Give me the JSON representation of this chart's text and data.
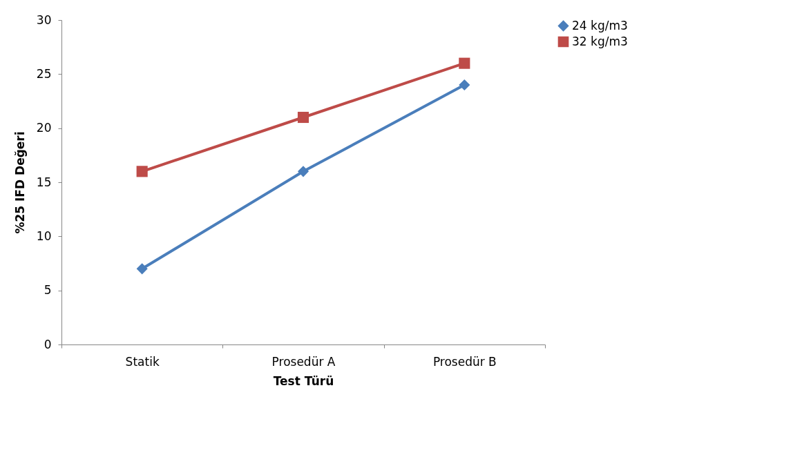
{
  "chart_data": {
    "type": "line",
    "xlabel": "Test Türü",
    "ylabel": "%25 IFD Değeri",
    "categories": [
      "Statik",
      "Prosedür A",
      "Prosedür B"
    ],
    "series": [
      {
        "name": "24 kg/m3",
        "color": "#4a7ebb",
        "marker": "diamond",
        "values": [
          7,
          16,
          24
        ]
      },
      {
        "name": "32 kg/m3",
        "color": "#be4b48",
        "marker": "square",
        "values": [
          16,
          21,
          26
        ]
      }
    ],
    "ylim": [
      0,
      30
    ],
    "yticks": [
      0,
      5,
      10,
      15,
      20,
      25,
      30
    ],
    "grid": false,
    "legend": "right",
    "line_style": "solid"
  }
}
